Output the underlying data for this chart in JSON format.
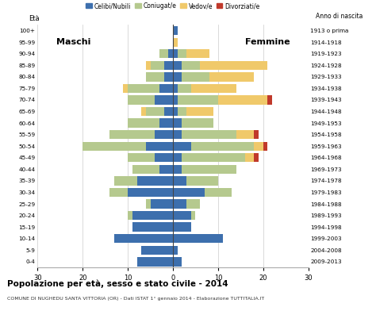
{
  "age_groups": [
    "0-4",
    "5-9",
    "10-14",
    "15-19",
    "20-24",
    "25-29",
    "30-34",
    "35-39",
    "40-44",
    "45-49",
    "50-54",
    "55-59",
    "60-64",
    "65-69",
    "70-74",
    "75-79",
    "80-84",
    "85-89",
    "90-94",
    "95-99",
    "100+"
  ],
  "birth_years": [
    "2009-2013",
    "2004-2008",
    "1999-2003",
    "1994-1998",
    "1989-1993",
    "1984-1988",
    "1979-1983",
    "1974-1978",
    "1969-1973",
    "1964-1968",
    "1959-1963",
    "1954-1958",
    "1949-1953",
    "1944-1948",
    "1939-1943",
    "1934-1938",
    "1929-1933",
    "1924-1928",
    "1919-1923",
    "1914-1918",
    "1913 o prima"
  ],
  "males": {
    "celibinubili": [
      8,
      7,
      13,
      9,
      9,
      5,
      10,
      8,
      3,
      4,
      6,
      4,
      3,
      2,
      4,
      3,
      2,
      2,
      1,
      0,
      0
    ],
    "coniugati": [
      0,
      0,
      0,
      0,
      1,
      1,
      4,
      5,
      6,
      6,
      14,
      10,
      7,
      4,
      6,
      7,
      4,
      3,
      2,
      0,
      0
    ],
    "vedovi": [
      0,
      0,
      0,
      0,
      0,
      0,
      0,
      0,
      0,
      0,
      0,
      0,
      0,
      1,
      0,
      1,
      0,
      1,
      0,
      0,
      0
    ],
    "divorziati": [
      0,
      0,
      0,
      0,
      0,
      0,
      0,
      0,
      0,
      0,
      0,
      0,
      0,
      0,
      0,
      0,
      0,
      0,
      0,
      0,
      0
    ]
  },
  "females": {
    "celibenubile": [
      2,
      1,
      11,
      4,
      4,
      3,
      7,
      3,
      2,
      2,
      4,
      2,
      2,
      1,
      1,
      1,
      2,
      2,
      1,
      0,
      1
    ],
    "coniugate": [
      0,
      0,
      0,
      0,
      1,
      3,
      6,
      7,
      12,
      14,
      14,
      12,
      7,
      2,
      9,
      3,
      6,
      4,
      2,
      0,
      0
    ],
    "vedove": [
      0,
      0,
      0,
      0,
      0,
      0,
      0,
      0,
      0,
      2,
      2,
      4,
      0,
      6,
      11,
      10,
      10,
      15,
      5,
      1,
      0
    ],
    "divorziate": [
      0,
      0,
      0,
      0,
      0,
      0,
      0,
      0,
      0,
      1,
      1,
      1,
      0,
      0,
      1,
      0,
      0,
      0,
      0,
      0,
      0
    ]
  },
  "color_celibinubili": "#3d6fad",
  "color_coniugati": "#b5c98e",
  "color_vedovi": "#f0c96a",
  "color_divorziati": "#c0392b",
  "xlim": 30,
  "title": "Popolazione per età, sesso e stato civile - 2014",
  "subtitle": "COMUNE DI NUGHEDU SANTA VITTORIA (OR) - Dati ISTAT 1° gennaio 2014 - Elaborazione TUTTITALIA.IT",
  "ylabel_left": "Età",
  "ylabel_right": "Anno di nascita",
  "label_celibinubili": "Celibi/Nubili",
  "label_coniugati": "Coniugat/e",
  "label_vedovi": "Vedov/e",
  "label_divorziati": "Divorziati/e"
}
